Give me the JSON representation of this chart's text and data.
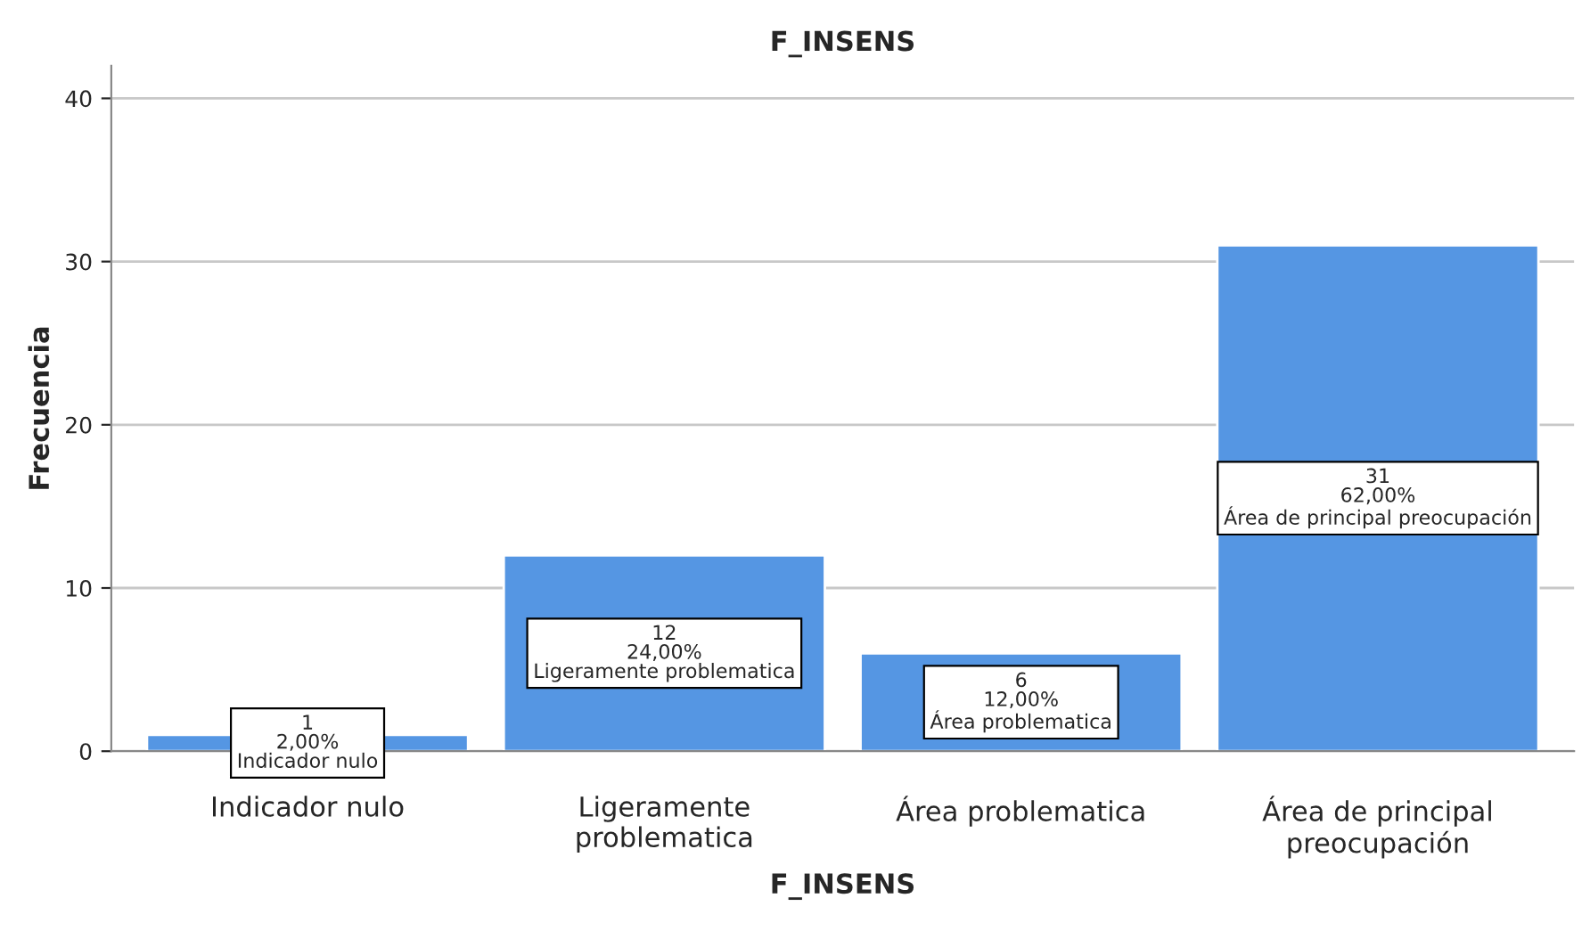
{
  "chart_data": {
    "type": "bar",
    "title": "F_INSENS",
    "xlabel": "F_INSENS",
    "ylabel": "Frecuencia",
    "categories": [
      "Indicador nulo",
      "Ligeramente\nproblematica",
      "Área problematica",
      "Área de principal\npreocupación"
    ],
    "values": [
      1,
      12,
      6,
      31
    ],
    "value_labels": [
      "1\n2,00%\nIndicador nulo",
      "12\n24,00%\nLigeramente problematica",
      "6\n12,00%\nÁrea problematica",
      "31\n62,00%\nÁrea de principal preocupación"
    ],
    "color": "#5596e3",
    "ylim": [
      0,
      42
    ],
    "yticks": [
      0,
      10,
      20,
      30,
      40
    ],
    "grid": "y"
  }
}
